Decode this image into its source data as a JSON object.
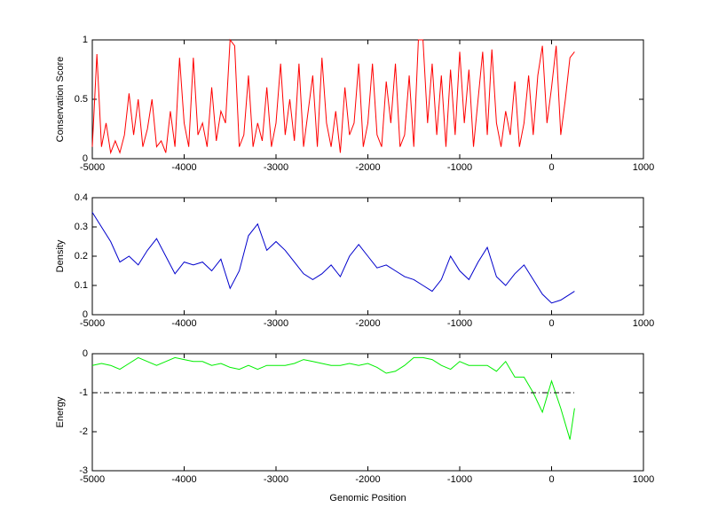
{
  "chart_data": [
    {
      "type": "line",
      "ylabel": "Conservation Score",
      "xlim": [
        -5000,
        1000
      ],
      "xticks": [
        -5000,
        -4000,
        -3000,
        -2000,
        -1000,
        0,
        1000
      ],
      "ylim": [
        0,
        1
      ],
      "yticks": [
        0,
        0.5,
        1
      ],
      "series": [
        {
          "color": "#ff0000",
          "x": [
            -5000,
            -4950,
            -4900,
            -4850,
            -4800,
            -4750,
            -4700,
            -4650,
            -4600,
            -4550,
            -4500,
            -4450,
            -4400,
            -4350,
            -4300,
            -4250,
            -4200,
            -4150,
            -4100,
            -4050,
            -4000,
            -3950,
            -3900,
            -3850,
            -3800,
            -3750,
            -3700,
            -3650,
            -3600,
            -3550,
            -3500,
            -3450,
            -3400,
            -3350,
            -3300,
            -3250,
            -3200,
            -3150,
            -3100,
            -3050,
            -3000,
            -2950,
            -2900,
            -2850,
            -2800,
            -2750,
            -2700,
            -2650,
            -2600,
            -2550,
            -2500,
            -2450,
            -2400,
            -2350,
            -2300,
            -2250,
            -2200,
            -2150,
            -2100,
            -2050,
            -2000,
            -1950,
            -1900,
            -1850,
            -1800,
            -1750,
            -1700,
            -1650,
            -1600,
            -1550,
            -1500,
            -1450,
            -1400,
            -1350,
            -1300,
            -1250,
            -1200,
            -1150,
            -1100,
            -1050,
            -1000,
            -950,
            -900,
            -850,
            -800,
            -750,
            -700,
            -650,
            -600,
            -550,
            -500,
            -450,
            -400,
            -350,
            -300,
            -250,
            -200,
            -150,
            -100,
            -50,
            0,
            50,
            100,
            150,
            200,
            250
          ],
          "values": [
            0.1,
            0.88,
            0.1,
            0.3,
            0.05,
            0.15,
            0.05,
            0.2,
            0.55,
            0.2,
            0.5,
            0.1,
            0.25,
            0.5,
            0.1,
            0.15,
            0.05,
            0.4,
            0.1,
            0.85,
            0.3,
            0.1,
            0.85,
            0.2,
            0.3,
            0.1,
            0.6,
            0.15,
            0.4,
            0.3,
            1.0,
            0.95,
            0.1,
            0.2,
            0.7,
            0.1,
            0.3,
            0.15,
            0.6,
            0.1,
            0.3,
            0.8,
            0.2,
            0.5,
            0.15,
            0.8,
            0.1,
            0.4,
            0.7,
            0.1,
            0.85,
            0.3,
            0.1,
            0.4,
            0.05,
            0.6,
            0.2,
            0.3,
            0.8,
            0.1,
            0.3,
            0.8,
            0.2,
            0.1,
            0.65,
            0.3,
            0.8,
            0.1,
            0.2,
            0.7,
            0.1,
            1.0,
            1.0,
            0.3,
            0.8,
            0.2,
            0.7,
            0.1,
            0.75,
            0.2,
            0.9,
            0.3,
            0.75,
            0.1,
            0.5,
            0.9,
            0.2,
            0.92,
            0.3,
            0.1,
            0.4,
            0.2,
            0.65,
            0.1,
            0.3,
            0.7,
            0.2,
            0.7,
            0.95,
            0.3,
            0.6,
            0.95,
            0.2,
            0.5,
            0.85,
            0.9
          ]
        }
      ]
    },
    {
      "type": "line",
      "ylabel": "Density",
      "xlim": [
        -5000,
        1000
      ],
      "xticks": [
        -5000,
        -4000,
        -3000,
        -2000,
        -1000,
        0,
        1000
      ],
      "ylim": [
        0,
        0.4
      ],
      "yticks": [
        0,
        0.1,
        0.2,
        0.3,
        0.4
      ],
      "series": [
        {
          "color": "#0000cc",
          "x": [
            -5000,
            -4900,
            -4800,
            -4700,
            -4600,
            -4500,
            -4400,
            -4300,
            -4200,
            -4100,
            -4000,
            -3900,
            -3800,
            -3700,
            -3600,
            -3500,
            -3400,
            -3300,
            -3200,
            -3100,
            -3000,
            -2900,
            -2800,
            -2700,
            -2600,
            -2500,
            -2400,
            -2300,
            -2200,
            -2100,
            -2000,
            -1900,
            -1800,
            -1700,
            -1600,
            -1500,
            -1400,
            -1300,
            -1200,
            -1100,
            -1000,
            -900,
            -800,
            -700,
            -600,
            -500,
            -400,
            -300,
            -200,
            -100,
            0,
            100,
            200,
            250
          ],
          "values": [
            0.35,
            0.3,
            0.25,
            0.18,
            0.2,
            0.17,
            0.22,
            0.26,
            0.2,
            0.14,
            0.18,
            0.17,
            0.18,
            0.15,
            0.19,
            0.09,
            0.15,
            0.27,
            0.31,
            0.22,
            0.25,
            0.22,
            0.18,
            0.14,
            0.12,
            0.14,
            0.17,
            0.13,
            0.2,
            0.24,
            0.2,
            0.16,
            0.17,
            0.15,
            0.13,
            0.12,
            0.1,
            0.08,
            0.12,
            0.2,
            0.15,
            0.12,
            0.18,
            0.23,
            0.13,
            0.1,
            0.14,
            0.17,
            0.12,
            0.07,
            0.04,
            0.05,
            0.07,
            0.08
          ]
        }
      ]
    },
    {
      "type": "line",
      "ylabel": "Energy",
      "xlabel": "Genomic Position",
      "xlim": [
        -5000,
        1000
      ],
      "xticks": [
        -5000,
        -4000,
        -3000,
        -2000,
        -1000,
        0,
        1000
      ],
      "ylim": [
        -3,
        0
      ],
      "yticks": [
        -3,
        -2,
        -1,
        0
      ],
      "series": [
        {
          "color": "#00ee00",
          "x": [
            -5000,
            -4900,
            -4800,
            -4700,
            -4600,
            -4500,
            -4400,
            -4300,
            -4200,
            -4100,
            -4000,
            -3900,
            -3800,
            -3700,
            -3600,
            -3500,
            -3400,
            -3300,
            -3200,
            -3100,
            -3000,
            -2900,
            -2800,
            -2700,
            -2600,
            -2500,
            -2400,
            -2300,
            -2200,
            -2100,
            -2000,
            -1900,
            -1800,
            -1700,
            -1600,
            -1500,
            -1400,
            -1300,
            -1200,
            -1100,
            -1000,
            -900,
            -800,
            -700,
            -600,
            -500,
            -400,
            -300,
            -200,
            -100,
            0,
            100,
            200,
            250
          ],
          "values": [
            -0.3,
            -0.25,
            -0.3,
            -0.4,
            -0.25,
            -0.1,
            -0.2,
            -0.3,
            -0.2,
            -0.1,
            -0.15,
            -0.2,
            -0.2,
            -0.3,
            -0.25,
            -0.35,
            -0.4,
            -0.3,
            -0.4,
            -0.3,
            -0.3,
            -0.3,
            -0.25,
            -0.15,
            -0.2,
            -0.25,
            -0.3,
            -0.3,
            -0.25,
            -0.3,
            -0.25,
            -0.35,
            -0.5,
            -0.45,
            -0.3,
            -0.1,
            -0.1,
            -0.15,
            -0.3,
            -0.4,
            -0.2,
            -0.3,
            -0.3,
            -0.3,
            -0.45,
            -0.2,
            -0.6,
            -0.6,
            -1.0,
            -1.5,
            -0.7,
            -1.4,
            -2.2,
            -1.4
          ]
        },
        {
          "color": "#000000",
          "style": "dash-dot",
          "x": [
            -5000,
            250
          ],
          "values": [
            -1,
            -1
          ]
        }
      ]
    }
  ]
}
